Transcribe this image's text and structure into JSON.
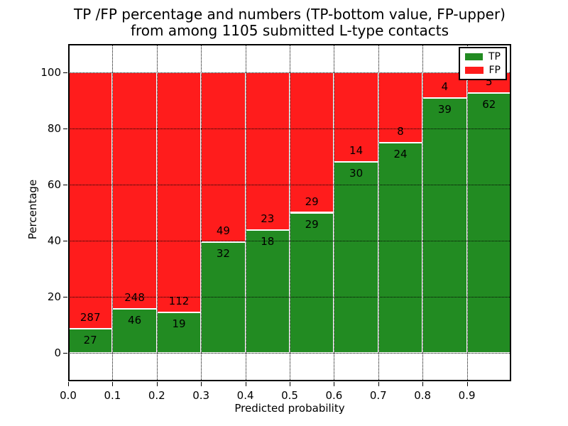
{
  "title": {
    "line1": "TP /FP percentage and numbers (TP-bottom value, FP-upper)",
    "line2": "from among 1105 submitted L-type contacts"
  },
  "chart_data": {
    "type": "bar",
    "stacked": true,
    "normalized_to_percent": true,
    "title": "TP /FP percentage and numbers (TP-bottom value, FP-upper) from among 1105 submitted L-type contacts",
    "xlabel": "Predicted probability",
    "ylabel": "Percentage",
    "xlim": [
      0.0,
      1.0
    ],
    "ylim": [
      -10,
      110
    ],
    "grid": true,
    "grid_style": "dotted",
    "legend_position": "upper right",
    "bar_width": 0.1,
    "categories": [
      "0.0",
      "0.1",
      "0.2",
      "0.3",
      "0.4",
      "0.5",
      "0.6",
      "0.7",
      "0.8",
      "0.9"
    ],
    "x_tick_labels": [
      "0.0",
      "0.1",
      "0.2",
      "0.3",
      "0.4",
      "0.5",
      "0.6",
      "0.7",
      "0.8",
      "0.9"
    ],
    "y_tick_values": [
      0,
      20,
      40,
      60,
      80,
      100
    ],
    "series": [
      {
        "name": "TP",
        "color": "#228b22",
        "values": [
          27,
          46,
          19,
          32,
          18,
          29,
          30,
          24,
          39,
          62
        ]
      },
      {
        "name": "FP",
        "color": "#ff1c1c",
        "values": [
          287,
          248,
          112,
          49,
          23,
          29,
          14,
          8,
          4,
          5
        ]
      }
    ],
    "total_contacts": 1105
  },
  "legend": {
    "items": [
      {
        "label": "TP",
        "color": "#228b22"
      },
      {
        "label": "FP",
        "color": "#ff1c1c"
      }
    ]
  },
  "colors": {
    "tp": "#228b22",
    "fp": "#ff1c1c",
    "background": "#ffffff",
    "grid": "#000000",
    "frame": "#000000",
    "bar_edge": "#ffffff",
    "text": "#000000"
  }
}
